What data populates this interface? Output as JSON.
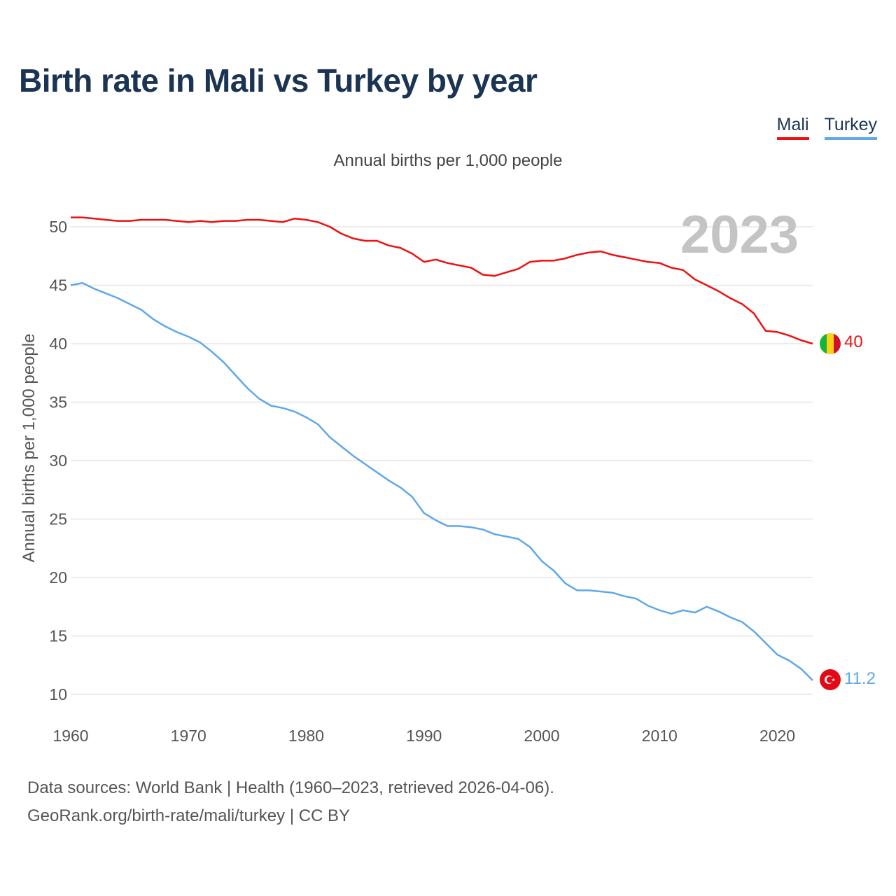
{
  "title": "Birth rate in Mali vs Turkey by year",
  "subtitle": "Annual births per 1,000 people",
  "legend": [
    {
      "name": "Mali",
      "color": "#ee1111"
    },
    {
      "name": "Turkey",
      "color": "#5fa8e8"
    }
  ],
  "year_label": "2023",
  "end_labels": {
    "mali": "40",
    "turkey": "11.2"
  },
  "source": {
    "line1": "Data sources: World Bank | Health (1960–2023, retrieved 2026-04-06).",
    "line2": "GeoRank.org/birth-rate/mali/turkey | CC BY"
  },
  "chart_data": {
    "type": "line",
    "title": "Birth rate in Mali vs Turkey by year",
    "ylabel": "Annual births per 1,000 people",
    "xlabel": "",
    "xlim": [
      1960,
      2023
    ],
    "ylim": [
      10,
      52
    ],
    "yticks": [
      10,
      15,
      20,
      25,
      30,
      35,
      40,
      45,
      50
    ],
    "xticks": [
      1960,
      1970,
      1980,
      1990,
      2000,
      2010,
      2020
    ],
    "grid": true,
    "x": [
      1960,
      1961,
      1962,
      1963,
      1964,
      1965,
      1966,
      1967,
      1968,
      1969,
      1970,
      1971,
      1972,
      1973,
      1974,
      1975,
      1976,
      1977,
      1978,
      1979,
      1980,
      1981,
      1982,
      1983,
      1984,
      1985,
      1986,
      1987,
      1988,
      1989,
      1990,
      1991,
      1992,
      1993,
      1994,
      1995,
      1996,
      1997,
      1998,
      1999,
      2000,
      2001,
      2002,
      2003,
      2004,
      2005,
      2006,
      2007,
      2008,
      2009,
      2010,
      2011,
      2012,
      2013,
      2014,
      2015,
      2016,
      2017,
      2018,
      2019,
      2020,
      2021,
      2022,
      2023
    ],
    "series": [
      {
        "name": "Mali",
        "color": "#ee1111",
        "values": [
          50.8,
          50.8,
          50.7,
          50.6,
          50.5,
          50.5,
          50.6,
          50.6,
          50.6,
          50.5,
          50.4,
          50.5,
          50.4,
          50.5,
          50.5,
          50.6,
          50.6,
          50.5,
          50.4,
          50.7,
          50.6,
          50.4,
          50.0,
          49.4,
          49.0,
          48.8,
          48.8,
          48.4,
          48.2,
          47.7,
          47.0,
          47.2,
          46.9,
          46.7,
          46.5,
          45.9,
          45.8,
          46.1,
          46.4,
          47.0,
          47.1,
          47.1,
          47.3,
          47.6,
          47.8,
          47.9,
          47.6,
          47.4,
          47.2,
          47.0,
          46.9,
          46.5,
          46.3,
          45.5,
          45.0,
          44.5,
          43.9,
          43.4,
          42.6,
          41.1,
          41.0,
          40.7,
          40.3,
          40.0
        ]
      },
      {
        "name": "Turkey",
        "color": "#5fa8e8",
        "values": [
          45.0,
          45.2,
          44.7,
          44.3,
          43.9,
          43.4,
          42.9,
          42.1,
          41.5,
          41.0,
          40.6,
          40.1,
          39.3,
          38.4,
          37.3,
          36.2,
          35.3,
          34.7,
          34.5,
          34.2,
          33.7,
          33.1,
          32.0,
          31.2,
          30.4,
          29.7,
          29.0,
          28.3,
          27.7,
          26.9,
          25.5,
          24.9,
          24.4,
          24.4,
          24.3,
          24.1,
          23.7,
          23.5,
          23.3,
          22.6,
          21.4,
          20.6,
          19.5,
          18.9,
          18.9,
          18.8,
          18.7,
          18.4,
          18.2,
          17.6,
          17.2,
          16.9,
          17.2,
          17.0,
          17.5,
          17.1,
          16.6,
          16.2,
          15.4,
          14.4,
          13.4,
          12.9,
          12.2,
          11.2
        ]
      }
    ]
  }
}
